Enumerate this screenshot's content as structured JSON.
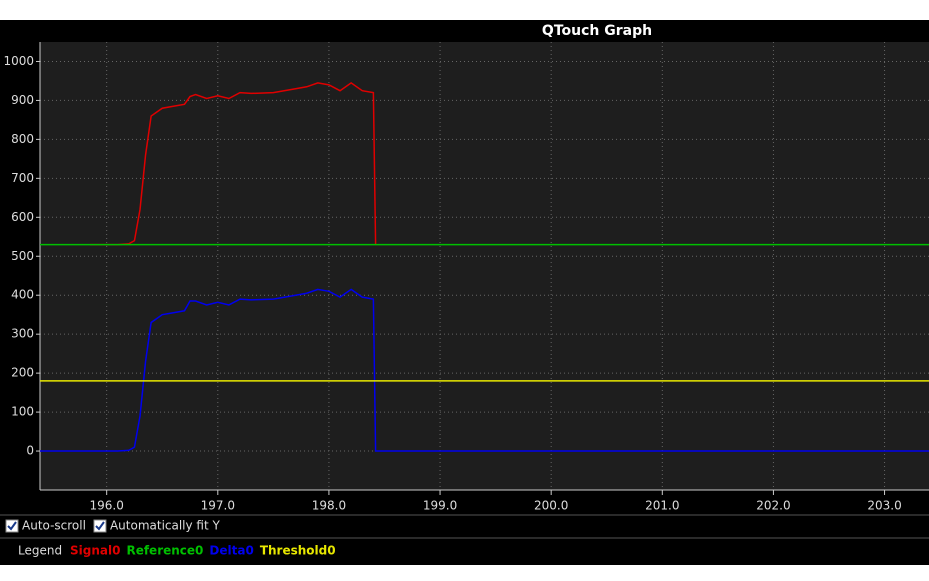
{
  "window": {
    "checkboxes": [
      {
        "label": "Auto-scroll",
        "checked": true
      },
      {
        "label": "Automatically fit Y",
        "checked": true
      }
    ],
    "legend_label": "Legend"
  },
  "chart_data": {
    "type": "line",
    "title": "QTouch Graph",
    "xlim": [
      195.4,
      203.4
    ],
    "ylim": [
      -100,
      1050
    ],
    "xticks": [
      {
        "value": 196,
        "label": "196.0"
      },
      {
        "value": 197,
        "label": "197.0"
      },
      {
        "value": 198,
        "label": "198.0"
      },
      {
        "value": 199,
        "label": "199.0"
      },
      {
        "value": 200,
        "label": "200.0"
      },
      {
        "value": 201,
        "label": "201.0"
      },
      {
        "value": 202,
        "label": "202.0"
      },
      {
        "value": 203,
        "label": "203.0"
      }
    ],
    "yticks": [
      0,
      100,
      200,
      300,
      400,
      500,
      600,
      700,
      800,
      900,
      1000
    ],
    "grid": true,
    "series": [
      {
        "name": "Signal0",
        "color": "#e00000",
        "x": [
          195.85,
          196.0,
          196.1,
          196.2,
          196.25,
          196.3,
          196.35,
          196.4,
          196.45,
          196.5,
          196.6,
          196.7,
          196.75,
          196.8,
          196.9,
          197.0,
          197.1,
          197.2,
          197.3,
          197.5,
          197.7,
          197.8,
          197.9,
          198.0,
          198.1,
          198.2,
          198.3,
          198.4,
          198.42
        ],
        "values": [
          530,
          530,
          530,
          532,
          540,
          620,
          760,
          860,
          870,
          880,
          885,
          890,
          910,
          915,
          905,
          912,
          905,
          920,
          918,
          920,
          930,
          935,
          945,
          940,
          925,
          945,
          925,
          920,
          530
        ]
      },
      {
        "name": "Reference0",
        "color": "#00c000",
        "x": [
          195.4,
          203.4
        ],
        "values": [
          530,
          530
        ]
      },
      {
        "name": "Delta0",
        "color": "#0000ee",
        "x": [
          195.4,
          196.0,
          196.1,
          196.2,
          196.25,
          196.3,
          196.35,
          196.4,
          196.45,
          196.5,
          196.6,
          196.7,
          196.75,
          196.8,
          196.9,
          197.0,
          197.1,
          197.2,
          197.3,
          197.5,
          197.7,
          197.8,
          197.9,
          198.0,
          198.1,
          198.2,
          198.3,
          198.4,
          198.42,
          203.4
        ],
        "values": [
          0,
          0,
          0,
          2,
          10,
          90,
          230,
          330,
          340,
          350,
          355,
          360,
          385,
          385,
          375,
          382,
          375,
          390,
          388,
          390,
          400,
          405,
          415,
          410,
          395,
          415,
          395,
          390,
          0,
          0
        ]
      },
      {
        "name": "Threshold0",
        "color": "#e8e800",
        "x": [
          195.4,
          203.4
        ],
        "values": [
          180,
          180
        ]
      }
    ]
  }
}
